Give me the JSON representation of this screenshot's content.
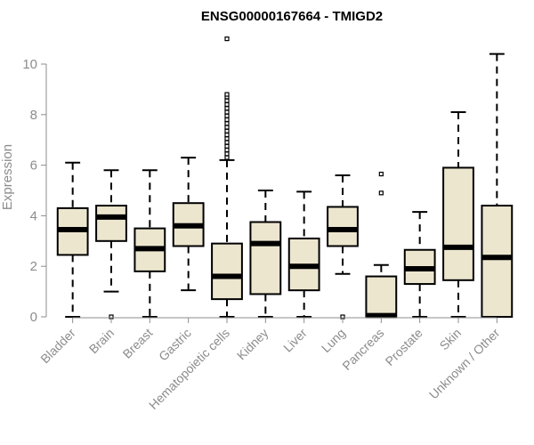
{
  "chart_data": {
    "type": "boxplot",
    "title": "ENSG00000167664 - TMIGD2",
    "xlabel": "",
    "ylabel": "Expression",
    "ylim": [
      0,
      11
    ],
    "yticks": [
      0,
      2,
      4,
      6,
      8,
      10
    ],
    "grid": false,
    "box_fill": "#ede6cf",
    "line_color": "#000000",
    "axis_color": "#8c8c8c",
    "categories": [
      "Bladder",
      "Brain",
      "Breast",
      "Gastric",
      "Hematopoietic cells",
      "Kidney",
      "Liver",
      "Lung",
      "Pancreas",
      "Prostate",
      "Skin",
      "Unknown / Other"
    ],
    "series": [
      {
        "name": "Bladder",
        "min": 0,
        "q1": 2.45,
        "median": 3.45,
        "q3": 4.3,
        "max": 6.1,
        "outliers": []
      },
      {
        "name": "Brain",
        "min": 1.0,
        "q1": 3.0,
        "median": 3.95,
        "q3": 4.4,
        "max": 5.8,
        "outliers": [
          0
        ]
      },
      {
        "name": "Breast",
        "min": 0,
        "q1": 1.8,
        "median": 2.7,
        "q3": 3.5,
        "max": 5.8,
        "outliers": []
      },
      {
        "name": "Gastric",
        "min": 1.05,
        "q1": 2.8,
        "median": 3.6,
        "q3": 4.5,
        "max": 6.3,
        "outliers": []
      },
      {
        "name": "Hematopoietic cells",
        "min": 0,
        "q1": 0.7,
        "median": 1.6,
        "q3": 2.9,
        "max": 6.2,
        "outliers": [
          6.3,
          6.45,
          6.6,
          6.75,
          6.9,
          7.05,
          7.2,
          7.35,
          7.5,
          7.65,
          7.8,
          7.95,
          8.1,
          8.25,
          8.4,
          8.55,
          8.7,
          8.8,
          11.0
        ]
      },
      {
        "name": "Kidney",
        "min": 0,
        "q1": 0.9,
        "median": 2.9,
        "q3": 3.75,
        "max": 5.0,
        "outliers": []
      },
      {
        "name": "Liver",
        "min": 0,
        "q1": 1.05,
        "median": 2.0,
        "q3": 3.1,
        "max": 4.95,
        "outliers": []
      },
      {
        "name": "Lung",
        "min": 1.7,
        "q1": 2.8,
        "median": 3.45,
        "q3": 4.35,
        "max": 5.6,
        "outliers": [
          0
        ]
      },
      {
        "name": "Pancreas",
        "min": 0,
        "q1": 0,
        "median": 0.05,
        "q3": 1.6,
        "max": 2.05,
        "outliers": [
          4.9,
          5.65
        ]
      },
      {
        "name": "Prostate",
        "min": 0,
        "q1": 1.3,
        "median": 1.9,
        "q3": 2.65,
        "max": 4.15,
        "outliers": []
      },
      {
        "name": "Skin",
        "min": 0,
        "q1": 1.45,
        "median": 2.75,
        "q3": 5.9,
        "max": 8.1,
        "outliers": []
      },
      {
        "name": "Unknown / Other",
        "min": 0,
        "q1": 0,
        "median": 2.35,
        "q3": 4.4,
        "max": 10.4,
        "outliers": []
      }
    ]
  }
}
